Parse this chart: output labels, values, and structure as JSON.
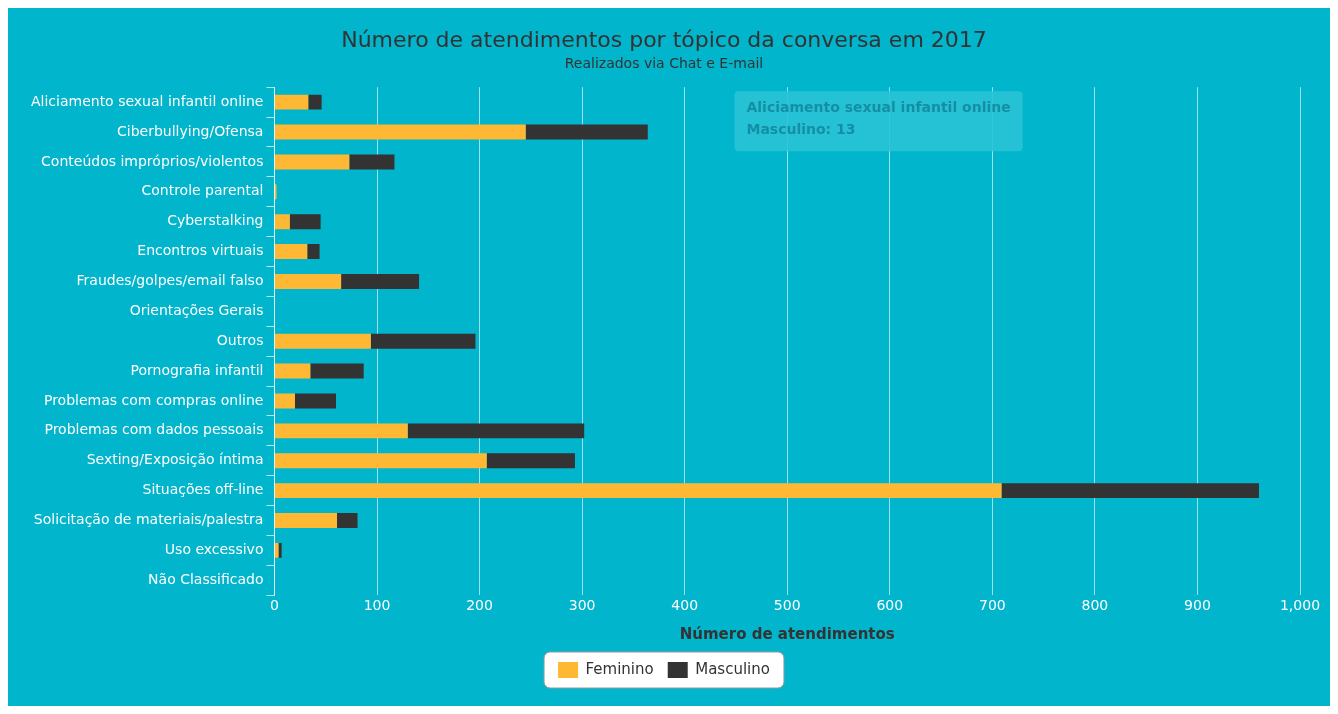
{
  "chart_data": {
    "type": "bar",
    "orientation": "horizontal",
    "stacked": true,
    "title": "Número de atendimentos por tópico da conversa em 2017",
    "subtitle": "Realizados via Chat e E-mail",
    "xlabel": "Número de atendimentos",
    "categories": [
      "Aliciamento sexual infantil online",
      "Ciberbullying/Ofensa",
      "Conteúdos impróprios/violentos",
      "Controle parental",
      "Cyberstalking",
      "Encontros virtuais",
      "Fraudes/golpes/email falso",
      "Orientações Gerais",
      "Outros",
      "Pornografia infantil",
      "Problemas com compras online",
      "Problemas com dados pessoais",
      "Sexting/Exposição íntima",
      "Situações off-line",
      "Solicitação de materiais/palestra",
      "Uso excessivo",
      "Não Classificado"
    ],
    "series": [
      {
        "name": "Feminino",
        "color": "#ffb833",
        "values": [
          33,
          245,
          73,
          2,
          15,
          32,
          65,
          0,
          94,
          35,
          20,
          130,
          207,
          709,
          61,
          4,
          0
        ]
      },
      {
        "name": "Masculino",
        "color": "#333333",
        "values": [
          13,
          119,
          44,
          0,
          30,
          12,
          76,
          0,
          102,
          52,
          40,
          172,
          86,
          251,
          20,
          3,
          0
        ]
      }
    ],
    "xlim": [
      0,
      1000
    ],
    "xticks": [
      0,
      100,
      200,
      300,
      400,
      500,
      600,
      700,
      800,
      900,
      {
        "value": 1000,
        "label": "1,000"
      }
    ],
    "grid": "x",
    "legend": "bottom",
    "annotations": [
      "Aliciamento sexual infantil online",
      "Masculino: 13"
    ]
  }
}
